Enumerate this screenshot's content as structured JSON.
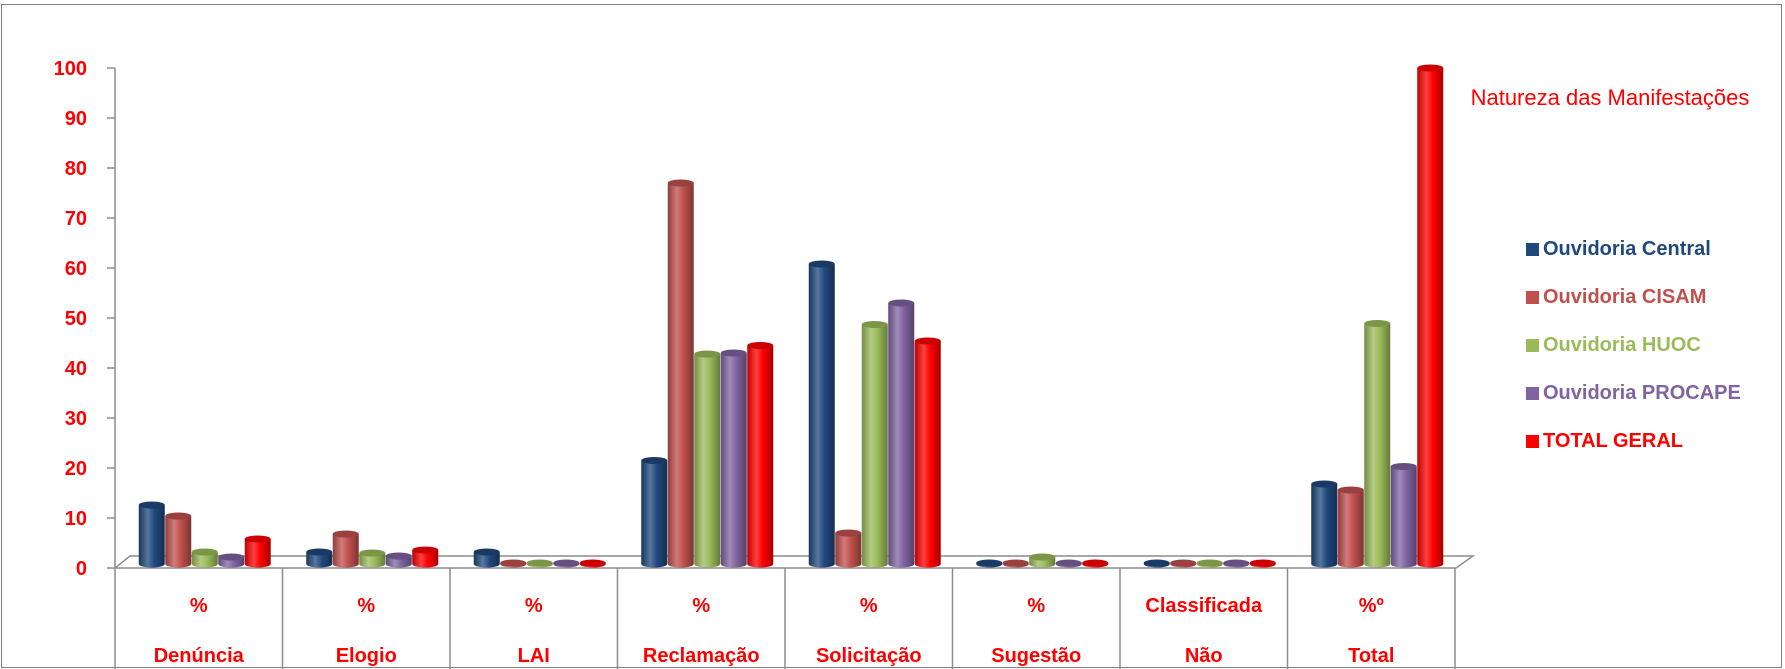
{
  "chart_data": {
    "type": "bar",
    "title": "",
    "xlabel": "",
    "ylabel": "",
    "ylim": [
      0,
      100
    ],
    "yticks": [
      "0",
      "10",
      "20",
      "30",
      "40",
      "50",
      "60",
      "70",
      "80",
      "90",
      "100"
    ],
    "categories": [
      {
        "line1": "%",
        "line2": "Denúncia"
      },
      {
        "line1": "%",
        "line2": "Elogio"
      },
      {
        "line1": "%",
        "line2": "LAI"
      },
      {
        "line1": "%",
        "line2": "Reclamação"
      },
      {
        "line1": "%",
        "line2": "Solicitação"
      },
      {
        "line1": "%",
        "line2": "Sugestão"
      },
      {
        "line1": "Classificada",
        "line2": "Não"
      },
      {
        "line1": "%º",
        "line2": "Total"
      }
    ],
    "series": [
      {
        "name": "Ouvidoria Central",
        "color": "#1f497d",
        "values": [
          12.6,
          3.2,
          3.2,
          21.5,
          60.8,
          0.2,
          0.2,
          16.8
        ]
      },
      {
        "name": "Ouvidoria CISAM",
        "color": "#c0504d",
        "values": [
          10.4,
          6.8,
          0.1,
          77,
          7,
          0.1,
          0.1,
          15.6
        ]
      },
      {
        "name": "Ouvidoria HUOC",
        "color": "#9bbb59",
        "values": [
          3.2,
          3,
          0.1,
          42.8,
          48.7,
          2.2,
          1,
          48.9
        ]
      },
      {
        "name": "Ouvidoria PROCAPE",
        "color": "#8064a2",
        "values": [
          2.2,
          2.4,
          0.1,
          43,
          53,
          0.2,
          0.1,
          20.3
        ]
      },
      {
        "name": "TOTAL GERAL",
        "color": "#ff0000",
        "values": [
          5.8,
          3.6,
          0.6,
          44.5,
          45.4,
          1,
          0.5,
          100
        ]
      }
    ],
    "legend": {
      "position": "right",
      "title": "Natureza das Manifestações"
    },
    "grid": false,
    "style": "3d-cylinder"
  }
}
